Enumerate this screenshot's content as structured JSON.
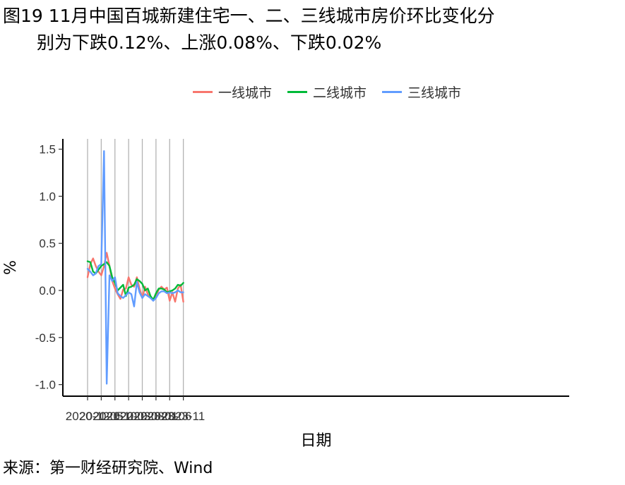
{
  "title": {
    "line1": "图19 11月中国百城新建住宅一、二、三线城市房价环比变化分",
    "line2": "别为下跌0.12%、上涨0.08%、下跌0.02%"
  },
  "source": "来源：第一财经研究院、Wind",
  "colors": {
    "一线城市": "#F8766D",
    "二线城市": "#00BA38",
    "三线城市": "#619CFF"
  },
  "chart_data": {
    "type": "line",
    "xlabel": "日期",
    "ylabel": "%",
    "x": [
      "2020-12",
      "2021-01",
      "2021-02",
      "2021-03",
      "2021-04",
      "2021-05",
      "2021-06",
      "2021-07",
      "2021-08",
      "2021-09",
      "2021-10",
      "2021-11",
      "2021-12",
      "2022-01",
      "2022-02",
      "2022-03",
      "2022-04",
      "2022-05",
      "2022-06",
      "2022-07",
      "2022-08",
      "2022-09",
      "2022-10",
      "2022-11",
      "2022-12",
      "2023-01",
      "2023-02",
      "2023-03",
      "2023-04",
      "2023-05",
      "2023-06",
      "2023-07",
      "2023-08",
      "2023-09",
      "2023-10",
      "2023-11"
    ],
    "x_ticks": [
      "2020-12",
      "2021-05",
      "2021-10",
      "2022-03",
      "2022-08",
      "2023-01",
      "2023-06",
      "2023-11"
    ],
    "y_ticks": [
      "-1.0",
      "-0.5",
      "0.0",
      "0.5",
      "1.0",
      "1.5"
    ],
    "ylim": [
      -1.1,
      1.6
    ],
    "legend_position": "top",
    "grid": "vertical major",
    "series": [
      {
        "name": "一线城市",
        "values": [
          0.14,
          0.28,
          0.34,
          0.26,
          0.2,
          0.16,
          0.26,
          0.4,
          0.26,
          0.1,
          0.02,
          -0.04,
          -0.09,
          0.01,
          0.02,
          0.14,
          0.06,
          0.04,
          0.14,
          0.02,
          -0.08,
          0.04,
          -0.04,
          -0.08,
          -0.09,
          -0.06,
          0.01,
          0.04,
          0.01,
          0.03,
          -0.11,
          -0.02,
          -0.12,
          0.02,
          0.06,
          -0.12
        ]
      },
      {
        "name": "二线城市",
        "values": [
          0.31,
          0.3,
          0.2,
          0.18,
          0.22,
          0.26,
          0.28,
          0.3,
          0.26,
          0.14,
          0.08,
          0.0,
          0.03,
          0.06,
          -0.06,
          0.03,
          0.04,
          0.06,
          0.12,
          0.1,
          0.07,
          0.0,
          0.02,
          -0.06,
          -0.1,
          -0.03,
          0.02,
          0.02,
          0.01,
          -0.02,
          -0.01,
          0.0,
          0.02,
          0.06,
          0.05,
          0.08
        ]
      },
      {
        "name": "三线城市",
        "values": [
          0.23,
          0.2,
          0.16,
          0.18,
          0.26,
          0.28,
          1.48,
          -0.99,
          0.16,
          0.1,
          0.14,
          -0.03,
          -0.06,
          -0.08,
          -0.05,
          -0.02,
          -0.04,
          -0.17,
          0.09,
          -0.02,
          -0.08,
          -0.04,
          -0.06,
          -0.08,
          -0.11,
          -0.08,
          -0.03,
          -0.01,
          -0.01,
          -0.03,
          -0.02,
          -0.03,
          -0.02,
          0.0,
          -0.02,
          -0.02
        ]
      }
    ]
  }
}
